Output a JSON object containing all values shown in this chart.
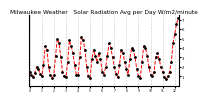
{
  "title": "Milwaukee Weather   Solar Radiation Avg per Day W/m2/minute",
  "title_fontsize": 4.2,
  "line_color": "red",
  "marker_color": "black",
  "line_style": "--",
  "marker": ".",
  "marker_size": 2.0,
  "line_width": 0.7,
  "background_color": "#ffffff",
  "grid_color": "#999999",
  "ylim": [
    0,
    7.5
  ],
  "ytick_labels": [
    "1",
    "2",
    "3",
    "4",
    "5",
    "6",
    "7"
  ],
  "ytick_values": [
    1,
    2,
    3,
    4,
    5,
    6,
    7
  ],
  "values": [
    1.5,
    1.2,
    0.9,
    1.4,
    2.0,
    1.8,
    1.3,
    1.0,
    2.2,
    4.2,
    3.8,
    2.0,
    1.1,
    0.8,
    1.2,
    3.2,
    5.0,
    4.5,
    3.0,
    1.5,
    1.0,
    0.9,
    2.5,
    4.8,
    4.2,
    3.5,
    2.2,
    1.2,
    1.1,
    3.0,
    5.2,
    4.8,
    3.8,
    2.0,
    1.0,
    0.8,
    2.8,
    3.8,
    3.2,
    2.5,
    3.5,
    2.8,
    1.5,
    1.2,
    2.0,
    3.2,
    4.5,
    4.0,
    3.0,
    2.0,
    1.3,
    0.9,
    2.2,
    3.8,
    3.5,
    2.5,
    1.8,
    1.2,
    2.8,
    4.0,
    3.8,
    3.0,
    1.8,
    1.0,
    0.8,
    2.5,
    4.2,
    4.0,
    3.2,
    2.0,
    1.2,
    1.0,
    1.5,
    3.0,
    3.5,
    2.8,
    2.0,
    1.5,
    0.9,
    0.7,
    1.0,
    1.5,
    2.5,
    4.5,
    5.5,
    6.5,
    7.2
  ],
  "num_grid_lines": 13,
  "grid_positions": [
    0,
    7,
    14,
    21,
    28,
    35,
    42,
    49,
    56,
    63,
    70,
    77,
    84
  ]
}
